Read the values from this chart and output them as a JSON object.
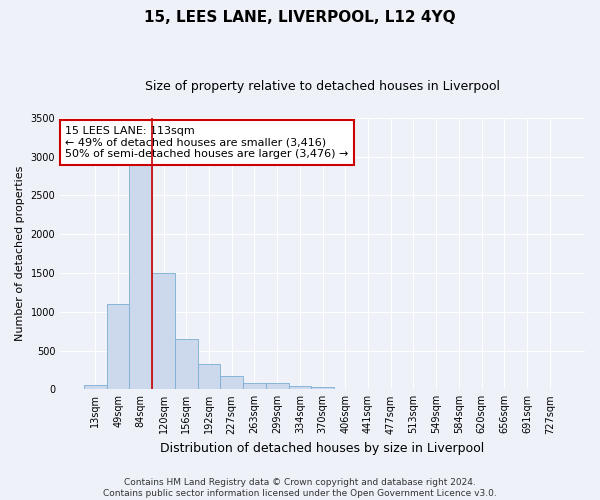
{
  "title": "15, LEES LANE, LIVERPOOL, L12 4YQ",
  "subtitle": "Size of property relative to detached houses in Liverpool",
  "xlabel": "Distribution of detached houses by size in Liverpool",
  "ylabel": "Number of detached properties",
  "categories": [
    "13sqm",
    "49sqm",
    "84sqm",
    "120sqm",
    "156sqm",
    "192sqm",
    "227sqm",
    "263sqm",
    "299sqm",
    "334sqm",
    "370sqm",
    "406sqm",
    "441sqm",
    "477sqm",
    "513sqm",
    "549sqm",
    "584sqm",
    "620sqm",
    "656sqm",
    "691sqm",
    "727sqm"
  ],
  "values": [
    50,
    1100,
    3050,
    1500,
    650,
    330,
    175,
    85,
    80,
    40,
    30,
    10,
    5,
    3,
    2,
    2,
    1,
    1,
    0,
    0,
    0
  ],
  "bar_color": "#ccd9ec",
  "bar_edge_color": "#7aaed6",
  "vline_color": "#cc0000",
  "vline_x": 3,
  "annotation_text": "15 LEES LANE: 113sqm\n← 49% of detached houses are smaller (3,416)\n50% of semi-detached houses are larger (3,476) →",
  "annotation_box_facecolor": "#ffffff",
  "annotation_box_edgecolor": "#cc0000",
  "footnote": "Contains HM Land Registry data © Crown copyright and database right 2024.\nContains public sector information licensed under the Open Government Licence v3.0.",
  "background_color": "#eef2f8",
  "plot_background": "#eef2f8",
  "ylim": [
    0,
    3500
  ],
  "yticks": [
    0,
    500,
    1000,
    1500,
    2000,
    2500,
    3000,
    3500
  ],
  "title_fontsize": 11,
  "subtitle_fontsize": 9,
  "xlabel_fontsize": 9,
  "ylabel_fontsize": 8,
  "tick_fontsize": 7,
  "annot_fontsize": 8,
  "footnote_fontsize": 6.5
}
